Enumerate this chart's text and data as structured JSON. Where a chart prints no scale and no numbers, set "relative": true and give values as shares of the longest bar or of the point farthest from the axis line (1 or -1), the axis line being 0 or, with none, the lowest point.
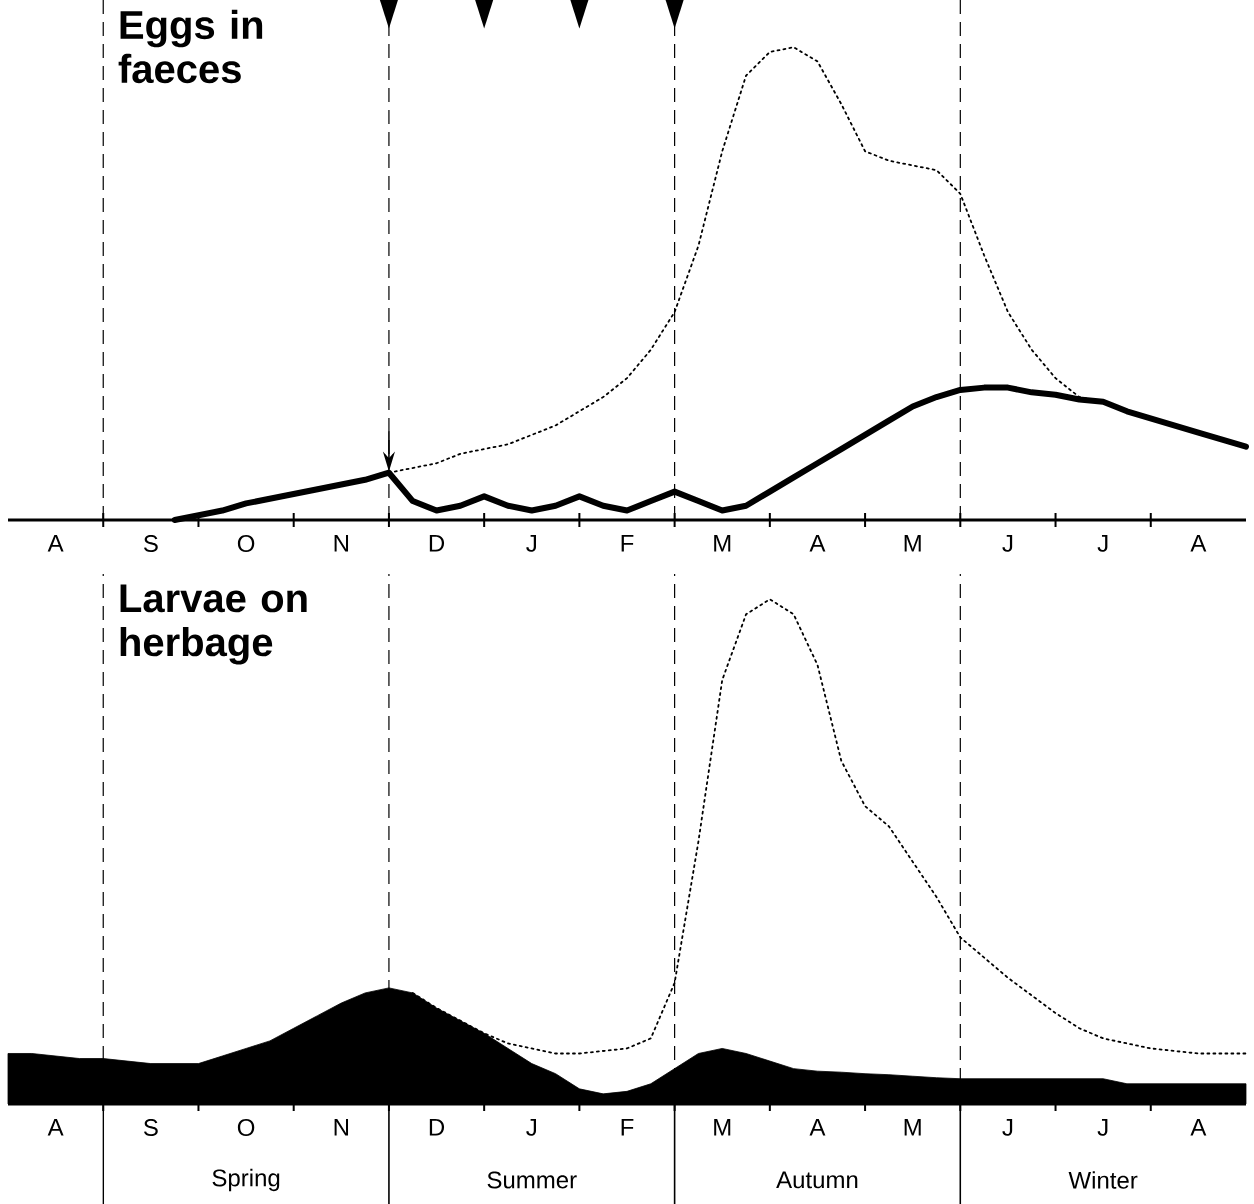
{
  "chart_data": [
    {
      "type": "line",
      "title": "Eggs in faeces",
      "relative": true,
      "tick_labels": "x",
      "categories": [
        null,
        null,
        "A",
        null,
        null,
        null,
        "S",
        null,
        null,
        null,
        "O",
        null,
        null,
        null,
        "N",
        null,
        null,
        null,
        "D",
        null,
        null,
        null,
        "J",
        null,
        null,
        null,
        "F",
        null,
        null,
        null,
        "M",
        null,
        null,
        null,
        "A",
        null,
        null,
        null,
        "M",
        null,
        null,
        null,
        "J",
        null,
        null,
        null,
        "J",
        null,
        null,
        null,
        "A",
        null,
        null
      ],
      "series": [
        {
          "color": "#000000",
          "line_style": "dotted",
          "values": [
            null,
            null,
            null,
            null,
            null,
            null,
            null,
            null,
            null,
            null,
            null,
            null,
            null,
            null,
            null,
            null,
            0.1,
            0.11,
            0.12,
            0.14,
            0.15,
            0.16,
            0.18,
            0.2,
            0.23,
            0.26,
            0.3,
            0.36,
            0.44,
            0.58,
            0.78,
            0.94,
            0.99,
            1.0,
            0.97,
            0.88,
            0.78,
            0.76,
            0.75,
            0.74,
            0.69,
            0.56,
            0.44,
            0.36,
            0.3,
            0.26,
            0.25,
            null,
            null,
            null,
            null,
            null,
            null
          ]
        },
        {
          "color": "#000000",
          "line_style": "solid",
          "values": [
            null,
            null,
            null,
            null,
            null,
            null,
            null,
            0,
            0.01,
            0.02,
            0.035,
            0.045,
            0.055,
            0.065,
            0.075,
            0.085,
            0.1,
            0.04,
            0.02,
            0.03,
            0.05,
            0.03,
            0.02,
            0.03,
            0.05,
            0.03,
            0.02,
            0.04,
            0.06,
            0.04,
            0.02,
            0.03,
            0.06,
            0.09,
            0.12,
            0.15,
            0.18,
            0.21,
            0.24,
            0.26,
            0.275,
            0.28,
            0.28,
            0.27,
            0.265,
            0.255,
            0.25,
            0.23,
            0.215,
            0.2,
            0.185,
            0.17,
            0.155
          ]
        }
      ],
      "grid": "x"
    },
    {
      "type": "area",
      "title": "Larvae on herbage",
      "relative": true,
      "tick_labels": "x",
      "categories": [
        null,
        null,
        "A",
        null,
        null,
        null,
        "S",
        null,
        null,
        null,
        "O",
        null,
        null,
        null,
        "N",
        null,
        null,
        null,
        "D",
        null,
        null,
        null,
        "J",
        null,
        null,
        null,
        "F",
        null,
        null,
        null,
        "M",
        null,
        null,
        null,
        "A",
        null,
        null,
        null,
        "M",
        null,
        null,
        null,
        "J",
        null,
        null,
        null,
        "J",
        null,
        null,
        null,
        "A",
        null,
        null
      ],
      "series": [
        {
          "type": "area",
          "color": "#000000",
          "values": [
            0.1,
            0.1,
            0.095,
            0.09,
            0.09,
            0.085,
            0.08,
            0.08,
            0.08,
            0.095,
            0.11,
            0.125,
            0.15,
            0.175,
            0.2,
            0.22,
            0.23,
            0.22,
            0.19,
            0.165,
            0.14,
            0.11,
            0.08,
            0.06,
            0.03,
            0.02,
            0.025,
            0.04,
            0.07,
            0.1,
            0.11,
            0.1,
            0.085,
            0.07,
            0.065,
            0.063,
            0.06,
            0.058,
            0.055,
            0.052,
            0.05,
            0.05,
            0.05,
            0.05,
            0.05,
            0.05,
            0.05,
            0.04,
            0.04,
            0.04,
            0.04,
            0.04,
            0.04
          ]
        },
        {
          "type": "line",
          "color": "#000000",
          "line_style": "dotted",
          "values": [
            null,
            null,
            null,
            null,
            null,
            null,
            null,
            null,
            null,
            null,
            null,
            null,
            null,
            null,
            null,
            null,
            null,
            0.22,
            0.19,
            0.165,
            0.14,
            0.12,
            0.11,
            0.1,
            0.1,
            0.105,
            0.11,
            0.13,
            0.24,
            0.52,
            0.84,
            0.97,
            1.0,
            0.97,
            0.87,
            0.68,
            0.59,
            0.55,
            0.48,
            0.41,
            0.33,
            0.29,
            0.25,
            0.215,
            0.18,
            0.15,
            0.13,
            0.12,
            0.11,
            0.105,
            0.1,
            0.1,
            0.1
          ]
        }
      ],
      "grid": "x",
      "annotations": [
        "Spring",
        "Summer",
        "Autumn",
        "Winter"
      ]
    }
  ]
}
